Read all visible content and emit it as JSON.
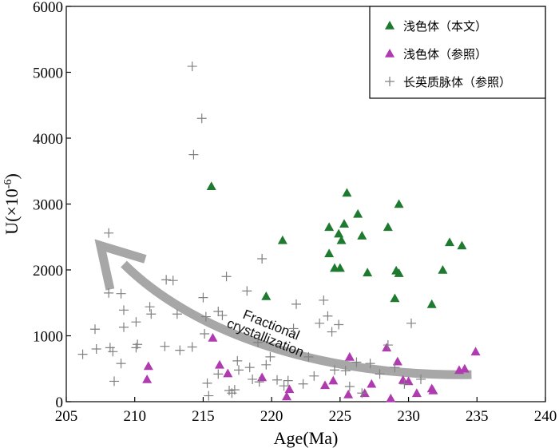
{
  "chart_data": {
    "type": "scatter",
    "xlabel": "Age(Ma)",
    "ylabel": "U(×10⁻⁶)",
    "xlim": [
      205,
      240
    ],
    "ylim": [
      0,
      6000
    ],
    "xticks": [
      205,
      210,
      215,
      220,
      225,
      230,
      235,
      240
    ],
    "yticks": [
      0,
      1000,
      2000,
      3000,
      4000,
      5000,
      6000
    ],
    "grid": false,
    "legend_position": "top-right",
    "series": [
      {
        "name": "浅色体（本文）",
        "marker": "triangle",
        "color": "#1e7a2e",
        "points": [
          [
            215.6,
            3270
          ],
          [
            220.8,
            2450
          ],
          [
            219.6,
            1600
          ],
          [
            224.2,
            2650
          ],
          [
            224.9,
            2550
          ],
          [
            225.1,
            2450
          ],
          [
            225.3,
            2700
          ],
          [
            225.5,
            3170
          ],
          [
            224.2,
            2250
          ],
          [
            224.6,
            2030
          ],
          [
            225.0,
            2030
          ],
          [
            226.3,
            2850
          ],
          [
            226.6,
            2520
          ],
          [
            227.0,
            1960
          ],
          [
            228.5,
            2650
          ],
          [
            229.0,
            1570
          ],
          [
            229.1,
            1990
          ],
          [
            229.3,
            1950
          ],
          [
            229.3,
            3000
          ],
          [
            231.7,
            1480
          ],
          [
            232.5,
            2000
          ],
          [
            233.0,
            2420
          ],
          [
            233.9,
            2370
          ]
        ]
      },
      {
        "name": "浅色体（参照）",
        "marker": "triangle",
        "color": "#b03ab0",
        "points": [
          [
            210.9,
            340
          ],
          [
            211.0,
            540
          ],
          [
            215.7,
            970
          ],
          [
            216.2,
            560
          ],
          [
            216.8,
            430
          ],
          [
            219.3,
            370
          ],
          [
            221.1,
            80
          ],
          [
            221.3,
            190
          ],
          [
            223.9,
            250
          ],
          [
            224.5,
            320
          ],
          [
            225.6,
            110
          ],
          [
            225.7,
            680
          ],
          [
            226.8,
            130
          ],
          [
            227.3,
            270
          ],
          [
            228.4,
            820
          ],
          [
            228.7,
            50
          ],
          [
            229.2,
            610
          ],
          [
            229.6,
            330
          ],
          [
            230.0,
            310
          ],
          [
            230.6,
            130
          ],
          [
            231.7,
            200
          ],
          [
            231.8,
            170
          ],
          [
            233.7,
            480
          ],
          [
            234.1,
            500
          ],
          [
            234.9,
            760
          ]
        ]
      },
      {
        "name": "长英质脉体（参照）",
        "marker": "plus",
        "color": "#808080",
        "points": [
          [
            214.2,
            5090
          ],
          [
            214.9,
            4300
          ],
          [
            214.3,
            3750
          ],
          [
            206.2,
            720
          ],
          [
            207.1,
            1100
          ],
          [
            207.2,
            800
          ],
          [
            208.1,
            2560
          ],
          [
            208.1,
            1650
          ],
          [
            208.2,
            820
          ],
          [
            208.4,
            760
          ],
          [
            208.5,
            310
          ],
          [
            209.0,
            580
          ],
          [
            209.0,
            1640
          ],
          [
            209.2,
            1130
          ],
          [
            209.2,
            1390
          ],
          [
            210.1,
            1210
          ],
          [
            210.2,
            870
          ],
          [
            210.1,
            820
          ],
          [
            211.1,
            1440
          ],
          [
            211.2,
            1330
          ],
          [
            212.3,
            1850
          ],
          [
            212.2,
            840
          ],
          [
            212.8,
            1840
          ],
          [
            213.1,
            1330
          ],
          [
            213.3,
            780
          ],
          [
            214.2,
            830
          ],
          [
            215.0,
            1580
          ],
          [
            215.1,
            1030
          ],
          [
            215.2,
            1290
          ],
          [
            215.3,
            280
          ],
          [
            215.4,
            90
          ],
          [
            216.1,
            1370
          ],
          [
            216.1,
            420
          ],
          [
            216.4,
            1310
          ],
          [
            216.7,
            1900
          ],
          [
            216.9,
            170
          ],
          [
            217.1,
            130
          ],
          [
            217.3,
            180
          ],
          [
            217.5,
            620
          ],
          [
            217.6,
            480
          ],
          [
            218.2,
            1680
          ],
          [
            218.4,
            520
          ],
          [
            218.6,
            340
          ],
          [
            219.0,
            900
          ],
          [
            219.1,
            300
          ],
          [
            219.3,
            2170
          ],
          [
            219.6,
            560
          ],
          [
            219.9,
            680
          ],
          [
            220.4,
            330
          ],
          [
            220.9,
            240
          ],
          [
            221.2,
            320
          ],
          [
            221.6,
            1110
          ],
          [
            221.8,
            1480
          ],
          [
            222.3,
            270
          ],
          [
            222.7,
            680
          ],
          [
            223.1,
            390
          ],
          [
            223.5,
            1190
          ],
          [
            223.8,
            1540
          ],
          [
            224.1,
            1300
          ],
          [
            224.4,
            1060
          ],
          [
            224.6,
            480
          ],
          [
            224.9,
            1170
          ],
          [
            225.4,
            470
          ],
          [
            225.7,
            230
          ],
          [
            226.2,
            600
          ],
          [
            226.6,
            130
          ],
          [
            227.2,
            580
          ],
          [
            227.9,
            420
          ],
          [
            228.5,
            860
          ],
          [
            229.0,
            520
          ],
          [
            229.7,
            270
          ],
          [
            230.2,
            1190
          ],
          [
            230.9,
            340
          ]
        ]
      }
    ],
    "annotations": [
      {
        "text": "Fractional\ncrystallization",
        "type": "arrow"
      }
    ]
  }
}
